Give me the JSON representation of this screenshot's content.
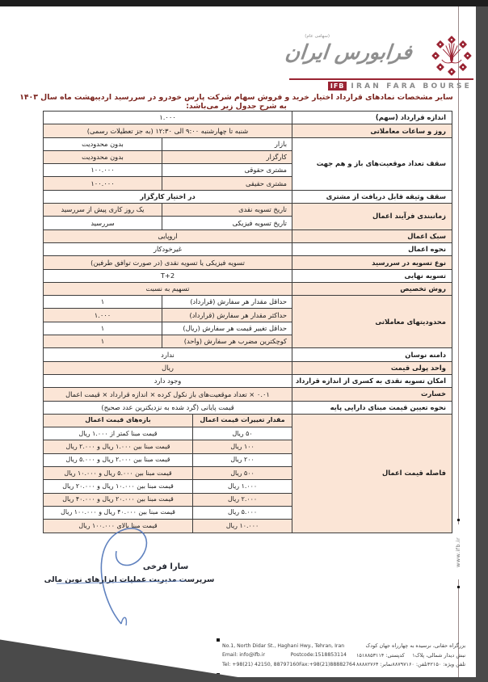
{
  "colors": {
    "accent_maroon": "#9a2433",
    "row_shade_peach": "#fbe5d6",
    "title_red": "#7b241e",
    "signature_blue": "#4f74b8"
  },
  "header": {
    "logo": {
      "calligraphy": "فرابورس ایران",
      "tagline": "(سهامی عام)",
      "ifb_short": "IFB",
      "ifb_full": "IRAN FARA BOURSE"
    },
    "title": "سایر مشخصات نمادهای قرارداد اختیار خرید و فروش سهام شرکت پارس خودرو در سررسید اردیبهشت ماه سال ۱۴۰۳ به شرح جدول زیر می‌باشد:"
  },
  "table": {
    "rows": [
      {
        "label": "اندازه قرارداد (سهم)",
        "labelSpan": 1,
        "labelShade": false,
        "shade": false,
        "cells": [
          {
            "t": "full",
            "v": "۱.۰۰۰"
          }
        ]
      },
      {
        "label": "روز و ساعات معاملاتی",
        "labelSpan": 1,
        "labelShade": true,
        "shade": true,
        "cells": [
          {
            "t": "full",
            "v": "شنبه تا چهارشنبه ۹:۰۰ الی ۱۲:۳۰ (به جز تعطیلات رسمی)"
          }
        ]
      },
      {
        "label": "سقف تعداد موقعیت‌های باز و هم جهت",
        "labelSpan": 4,
        "labelShade": false,
        "shade": false,
        "cells": [
          {
            "t": "inner",
            "v": "بازار"
          },
          {
            "t": "value",
            "v": "بدون محدودیت"
          }
        ]
      },
      {
        "shade": true,
        "cells": [
          {
            "t": "inner",
            "v": "کارگزار"
          },
          {
            "t": "value",
            "v": "بدون محدودیت"
          }
        ]
      },
      {
        "shade": false,
        "cells": [
          {
            "t": "inner",
            "v": "مشتری حقوقی"
          },
          {
            "t": "value",
            "v": "۱۰۰.۰۰۰"
          }
        ]
      },
      {
        "shade": true,
        "cells": [
          {
            "t": "inner",
            "v": "مشتری حقیقی"
          },
          {
            "t": "value",
            "v": "۱۰۰.۰۰۰"
          }
        ]
      },
      {
        "label": "سقف وثیقه قابل دریافت از مشتری",
        "labelSpan": 1,
        "labelShade": false,
        "shade": false,
        "cells": [
          {
            "t": "full",
            "v": "در اختیار کارگزار",
            "bold": true
          }
        ]
      },
      {
        "label": "زمانبندی فرآیند اعمال",
        "labelSpan": 2,
        "labelShade": true,
        "shade": true,
        "cells": [
          {
            "t": "inner",
            "v": "تاریخ تسویه نقدی"
          },
          {
            "t": "value",
            "v": "یک روز کاری پیش از سررسید"
          }
        ]
      },
      {
        "shade": false,
        "cells": [
          {
            "t": "inner",
            "v": "تاریخ تسویه فیزیکی"
          },
          {
            "t": "value",
            "v": "سررسید"
          }
        ]
      },
      {
        "label": "سبک اعمال",
        "labelSpan": 1,
        "labelShade": true,
        "shade": true,
        "cells": [
          {
            "t": "full",
            "v": "اروپایی"
          }
        ]
      },
      {
        "label": "نحوه اعمال",
        "labelSpan": 1,
        "labelShade": false,
        "shade": false,
        "cells": [
          {
            "t": "full",
            "v": "غیرخودکار"
          }
        ]
      },
      {
        "label": "نوع تسویه در سررسید",
        "labelSpan": 1,
        "labelShade": true,
        "shade": true,
        "cells": [
          {
            "t": "full",
            "v": "تسویه فیزیکی یا تسویه نقدی (در صورت توافق طرفین)"
          }
        ]
      },
      {
        "label": "تسویه نهایی",
        "labelSpan": 1,
        "labelShade": false,
        "shade": false,
        "cells": [
          {
            "t": "full",
            "v": "T+2"
          }
        ]
      },
      {
        "label": "روش تخصیص",
        "labelSpan": 1,
        "labelShade": true,
        "shade": true,
        "cells": [
          {
            "t": "full",
            "v": "تسهیم به نسبت"
          }
        ]
      },
      {
        "label": "محدودیتهای معاملاتی",
        "labelSpan": 4,
        "labelShade": true,
        "shade": false,
        "cells": [
          {
            "t": "inner",
            "v": "حداقل مقدار هر سفارش (قرارداد)"
          },
          {
            "t": "value",
            "v": "۱"
          }
        ]
      },
      {
        "shade": true,
        "cells": [
          {
            "t": "inner",
            "v": "حداکثر مقدار هر سفارش (قرارداد)"
          },
          {
            "t": "value",
            "v": "۱.۰۰۰"
          }
        ]
      },
      {
        "shade": false,
        "cells": [
          {
            "t": "inner",
            "v": "حداقل تغییر قیمت هر سفارش (ریال)"
          },
          {
            "t": "value",
            "v": "۱"
          }
        ]
      },
      {
        "shade": true,
        "cells": [
          {
            "t": "inner",
            "v": "کوچکترین مضرب هر سفارش (واحد)"
          },
          {
            "t": "value",
            "v": "۱"
          }
        ]
      },
      {
        "label": "دامنه نوسان",
        "labelSpan": 1,
        "labelShade": false,
        "shade": false,
        "cells": [
          {
            "t": "full",
            "v": "ندارد"
          }
        ]
      },
      {
        "label": "واحد پولی قیمت",
        "labelSpan": 1,
        "labelShade": true,
        "shade": true,
        "cells": [
          {
            "t": "full",
            "v": "ریال"
          }
        ]
      },
      {
        "label": "امکان تسویه نقدی به کسری از اندازه قرارداد",
        "labelSpan": 1,
        "labelShade": false,
        "shade": false,
        "cells": [
          {
            "t": "full",
            "v": "وجود دارد"
          }
        ]
      },
      {
        "label": "خسارت",
        "labelSpan": 1,
        "labelShade": true,
        "shade": true,
        "cells": [
          {
            "t": "full",
            "v": "۰.۰۱ × تعداد موقعیت‌های باز نکول کرده × اندازه قرارداد × قیمت اعمال"
          }
        ]
      },
      {
        "label": "نحوه تعیین قیمت مبنای دارایی پایه",
        "labelSpan": 1,
        "labelShade": false,
        "shade": false,
        "cells": [
          {
            "t": "full",
            "v": "قیمت پایانی (گرد شده به نزدیکترین عدد صحیح)"
          }
        ]
      },
      {
        "label": "فاصله قیمت اعمال",
        "labelSpan": 9,
        "labelShade": true,
        "shade": true,
        "cells": [
          {
            "t": "subLeft",
            "v": "بازه‌های قیمت اعمال",
            "bold": true
          },
          {
            "t": "subMid",
            "v": "مقدار تغییرات قیمت اعمال",
            "bold": true
          }
        ]
      },
      {
        "shade": false,
        "cells": [
          {
            "t": "subLeft",
            "v": "قیمت مبنا کمتر از ۱.۰۰۰ ریال"
          },
          {
            "t": "subMid",
            "v": "۵۰ ریال"
          }
        ]
      },
      {
        "shade": true,
        "cells": [
          {
            "t": "subLeft",
            "v": "قیمت مبنا بین ۱.۰۰۰ ریال و ۲.۰۰۰ ریال"
          },
          {
            "t": "subMid",
            "v": "۱۰۰ ریال"
          }
        ]
      },
      {
        "shade": false,
        "cells": [
          {
            "t": "subLeft",
            "v": "قیمت مبنا بین ۲.۰۰۰ ریال و ۵.۰۰۰ ریال"
          },
          {
            "t": "subMid",
            "v": "۲۰۰ ریال"
          }
        ]
      },
      {
        "shade": true,
        "cells": [
          {
            "t": "subLeft",
            "v": "قیمت مبنا بین ۵.۰۰۰ ریال و ۱۰.۰۰۰ ریال"
          },
          {
            "t": "subMid",
            "v": "۵۰۰ ریال"
          }
        ]
      },
      {
        "shade": false,
        "cells": [
          {
            "t": "subLeft",
            "v": "قیمت مبنا بین ۱۰.۰۰۰ ریال و ۲۰.۰۰۰ ریال"
          },
          {
            "t": "subMid",
            "v": "۱.۰۰۰ ریال"
          }
        ]
      },
      {
        "shade": true,
        "cells": [
          {
            "t": "subLeft",
            "v": "قیمت مبنا بین ۲۰.۰۰۰ ریال و ۴۰.۰۰۰ ریال"
          },
          {
            "t": "subMid",
            "v": "۲.۰۰۰ ریال"
          }
        ]
      },
      {
        "shade": false,
        "cells": [
          {
            "t": "subLeft",
            "v": "قیمت مبنا بین ۴۰.۰۰۰ ریال و ۱۰۰.۰۰۰ ریال"
          },
          {
            "t": "subMid",
            "v": "۵.۰۰۰ ریال"
          }
        ]
      },
      {
        "shade": true,
        "cells": [
          {
            "t": "subLeft",
            "v": "قیمت مبنا بالای ۱۰۰.۰۰۰ ریال"
          },
          {
            "t": "subMid",
            "v": "۱۰.۰۰۰ ریال"
          }
        ]
      }
    ]
  },
  "signature": {
    "name": "سارا فرخی",
    "role": "سرپرست مدیریت عملیات ابزارهای نوین مالی"
  },
  "side": {
    "website": "www.ifb.ir"
  },
  "footer": {
    "en": {
      "address": "No.1, North Didar St., Haghani Hwy., Tehran, Iran",
      "email": "Email: info@ifb.ir",
      "postcode": "Postcode:1518853114",
      "tel": "Tel: +98(21) 42150, 88797160",
      "fax": "Fax:+98(21)88882764"
    },
    "fa": {
      "address1": "بزرگراه حقانی، نرسیده به چهارراه جهان کودک",
      "address2": "نبش دیدار شمالی، پلاک۱",
      "postcode": "کدپستی: ۱۵۱۸۸۵۳۱۱۴",
      "tel_special": "تلفن ویژه: ۴۲۱۵۰",
      "tel": "تلفن: ۸۸۷۹۷۱۶۰",
      "fax": "نمابر: ۸۸۸۸۲۷۶۴"
    }
  }
}
